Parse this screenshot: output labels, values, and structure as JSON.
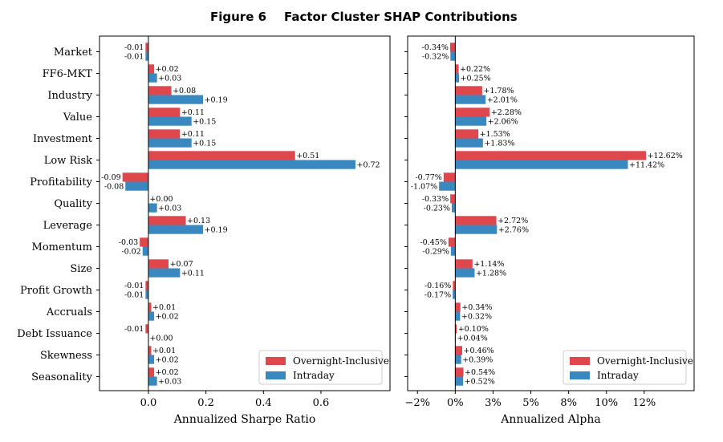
{
  "figure": {
    "label": "Figure 6",
    "title": "Factor Cluster SHAP Contributions"
  },
  "colors": {
    "overnight": "#e0474c",
    "intraday": "#3a88c0"
  },
  "chart_data": [
    {
      "type": "bar",
      "orientation": "horizontal",
      "categories": [
        "Market",
        "FF6-MKT",
        "Industry",
        "Value",
        "Investment",
        "Low Risk",
        "Profitability",
        "Quality",
        "Leverage",
        "Momentum",
        "Size",
        "Profit Growth",
        "Accruals",
        "Debt Issuance",
        "Skewness",
        "Seasonality"
      ],
      "series": [
        {
          "name": "Overnight-Inclusive",
          "values": [
            -0.01,
            0.02,
            0.08,
            0.11,
            0.11,
            0.51,
            -0.09,
            0.0,
            0.13,
            -0.03,
            0.07,
            -0.01,
            0.01,
            -0.01,
            0.01,
            0.02
          ],
          "labels": [
            "-0.01",
            "+0.02",
            "+0.08",
            "+0.11",
            "+0.11",
            "+0.51",
            "-0.09",
            "+0.00",
            "+0.13",
            "-0.03",
            "+0.07",
            "-0.01",
            "+0.01",
            "-0.01",
            "+0.01",
            "+0.02"
          ]
        },
        {
          "name": "Intraday",
          "values": [
            -0.01,
            0.03,
            0.19,
            0.15,
            0.15,
            0.72,
            -0.08,
            0.03,
            0.19,
            -0.02,
            0.11,
            -0.01,
            0.02,
            0.0,
            0.02,
            0.03
          ],
          "labels": [
            "-0.01",
            "+0.03",
            "+0.19",
            "+0.15",
            "+0.15",
            "+0.72",
            "-0.08",
            "+0.03",
            "+0.19",
            "-0.02",
            "+0.11",
            "-0.01",
            "+0.02",
            "+0.00",
            "+0.02",
            "+0.03"
          ]
        }
      ],
      "xlabel": "Annualized Sharpe Ratio",
      "xlim": [
        -0.17,
        0.84
      ],
      "xticks": [
        0.0,
        0.2,
        0.4,
        0.6
      ],
      "xtick_labels": [
        "0.0",
        "0.2",
        "0.4",
        "0.6"
      ],
      "grid": false,
      "legend": "bottom-right"
    },
    {
      "type": "bar",
      "orientation": "horizontal",
      "categories": [
        "Market",
        "FF6-MKT",
        "Industry",
        "Value",
        "Investment",
        "Low Risk",
        "Profitability",
        "Quality",
        "Leverage",
        "Momentum",
        "Size",
        "Profit Growth",
        "Accruals",
        "Debt Issuance",
        "Skewness",
        "Seasonality"
      ],
      "series": [
        {
          "name": "Overnight-Inclusive",
          "values": [
            -0.34,
            0.22,
            1.78,
            2.28,
            1.53,
            12.62,
            -0.77,
            -0.33,
            2.72,
            -0.45,
            1.14,
            -0.16,
            0.34,
            0.1,
            0.46,
            0.54
          ],
          "labels": [
            "-0.34%",
            "+0.22%",
            "+1.78%",
            "+2.28%",
            "+1.53%",
            "+12.62%",
            "-0.77%",
            "-0.33%",
            "+2.72%",
            "-0.45%",
            "+1.14%",
            "-0.16%",
            "+0.34%",
            "+0.10%",
            "+0.46%",
            "+0.54%"
          ]
        },
        {
          "name": "Intraday",
          "values": [
            -0.32,
            0.25,
            2.01,
            2.06,
            1.83,
            11.42,
            -1.07,
            -0.23,
            2.76,
            -0.29,
            1.28,
            -0.17,
            0.32,
            0.04,
            0.39,
            0.52
          ],
          "labels": [
            "-0.32%",
            "+0.25%",
            "+2.01%",
            "+2.06%",
            "+1.83%",
            "+11.42%",
            "-1.07%",
            "-0.23%",
            "+2.76%",
            "-0.29%",
            "+1.28%",
            "-0.17%",
            "+0.32%",
            "+0.04%",
            "+0.39%",
            "+0.52%"
          ]
        }
      ],
      "xlabel": "Annualized Alpha",
      "xlim": [
        -3.15,
        15.8
      ],
      "xticks": [
        -2.5,
        0.0,
        2.5,
        5.0,
        7.5,
        10.0,
        12.5
      ],
      "xtick_labels": [
        "−2%",
        "0%",
        "3%",
        "5%",
        "8%",
        "10%",
        "12%"
      ],
      "grid": false,
      "legend": "bottom-right"
    }
  ]
}
